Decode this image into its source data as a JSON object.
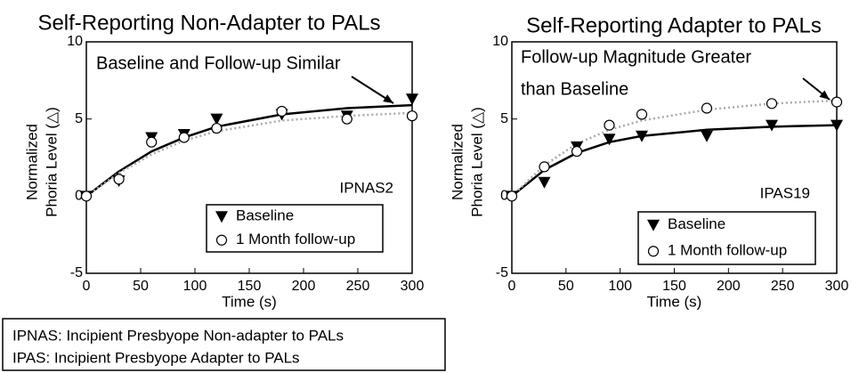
{
  "chart_data": [
    {
      "type": "scatter",
      "title": "Self-Reporting Non-Adapter to PALs",
      "xlabel": "Time (s)",
      "ylabel": [
        "Normalized",
        "Phoria Level (△)"
      ],
      "xlim": [
        0,
        300
      ],
      "ylim": [
        -5,
        10
      ],
      "xticks": [
        0,
        50,
        100,
        150,
        200,
        250,
        300
      ],
      "yticks": [
        -5,
        0,
        5,
        10
      ],
      "x": [
        0,
        30,
        60,
        90,
        120,
        180,
        240,
        300
      ],
      "series": [
        {
          "name": "Baseline",
          "marker": "triangle",
          "color": "#000000",
          "values": [
            0,
            1,
            3.8,
            4,
            5,
            5.3,
            5.2,
            6.3
          ]
        },
        {
          "name": "1 Month follow-up",
          "marker": "circle",
          "color": "#000000",
          "values": [
            0,
            1.1,
            3.5,
            3.8,
            4.4,
            5.5,
            5,
            5.2
          ]
        }
      ],
      "fits": [
        {
          "color": "#000000",
          "style": "solid",
          "values": [
            0,
            1.6,
            2.9,
            3.8,
            4.5,
            5.3,
            5.7,
            5.9
          ]
        },
        {
          "color": "#aaaaaa",
          "style": "dotted",
          "values": [
            0,
            1.5,
            2.7,
            3.6,
            4.2,
            4.9,
            5.2,
            5.4
          ]
        }
      ],
      "annotation": [
        "Baseline and Follow-up Similar"
      ],
      "id_label": "IPNAS2",
      "legend": "lower right"
    },
    {
      "type": "scatter",
      "title": "Self-Reporting Adapter to PALs",
      "xlabel": "Time (s)",
      "ylabel": [
        "Normalized",
        "Phoria Level (△)"
      ],
      "xlim": [
        0,
        300
      ],
      "ylim": [
        -5,
        10
      ],
      "xticks": [
        0,
        50,
        100,
        150,
        200,
        250,
        300
      ],
      "yticks": [
        -5,
        0,
        5,
        10
      ],
      "x": [
        0,
        30,
        60,
        90,
        120,
        180,
        240,
        300
      ],
      "series": [
        {
          "name": "Baseline",
          "marker": "triangle",
          "color": "#000000",
          "values": [
            0,
            0.9,
            3.2,
            3.7,
            3.9,
            3.9,
            4.6,
            4.6
          ]
        },
        {
          "name": "1 Month follow-up",
          "marker": "circle",
          "color": "#000000",
          "values": [
            0,
            1.9,
            2.9,
            4.6,
            5.3,
            5.7,
            6.0,
            6.1
          ]
        }
      ],
      "fits": [
        {
          "color": "#000000",
          "style": "solid",
          "values": [
            0,
            1.7,
            2.8,
            3.5,
            3.9,
            4.3,
            4.5,
            4.6
          ]
        },
        {
          "color": "#aaaaaa",
          "style": "dotted",
          "values": [
            0,
            2.0,
            3.4,
            4.3,
            4.9,
            5.6,
            6.0,
            6.2
          ]
        }
      ],
      "annotation": [
        "Follow-up Magnitude Greater",
        "than Baseline"
      ],
      "id_label": "IPAS19",
      "legend": "lower right"
    }
  ],
  "footnote": [
    "IPNAS: Incipient Presbyope  Non-adapter to PALs",
    "IPAS: Incipient Presbyope  Adapter to PALs"
  ]
}
